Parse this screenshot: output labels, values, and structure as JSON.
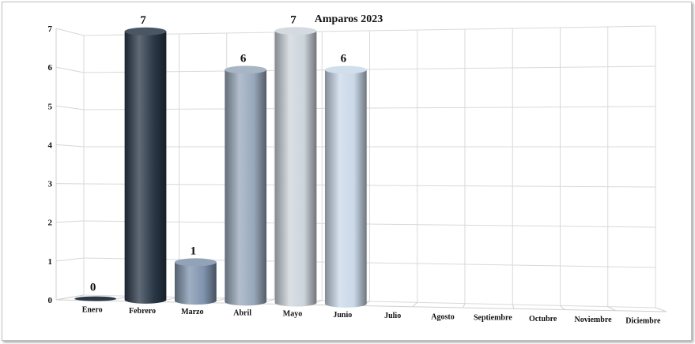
{
  "chart_data": {
    "type": "bar",
    "title": "Amparos 2023",
    "categories": [
      "Enero",
      "Febrero",
      "Marzo",
      "Abril",
      "Mayo",
      "Junio",
      "Julio",
      "Agosto",
      "Septiembre",
      "Octubre",
      "Noviembre",
      "Diciembre"
    ],
    "values": [
      0,
      7,
      1,
      6,
      7,
      6,
      null,
      null,
      null,
      null,
      null,
      null
    ],
    "data_labels": [
      "0",
      "7",
      "1",
      "6",
      "7",
      "6",
      "",
      "",
      "",
      "",
      "",
      ""
    ],
    "yticks": [
      "0",
      "1",
      "2",
      "3",
      "4",
      "5",
      "6",
      "7"
    ],
    "ylim": [
      0,
      7
    ],
    "grid": true,
    "legend": "none",
    "colors": [
      "#2a3848",
      "#2a3848",
      "#7f93ad",
      "#98a8bb",
      "#cdd4dc",
      "#c9d8e8"
    ]
  }
}
